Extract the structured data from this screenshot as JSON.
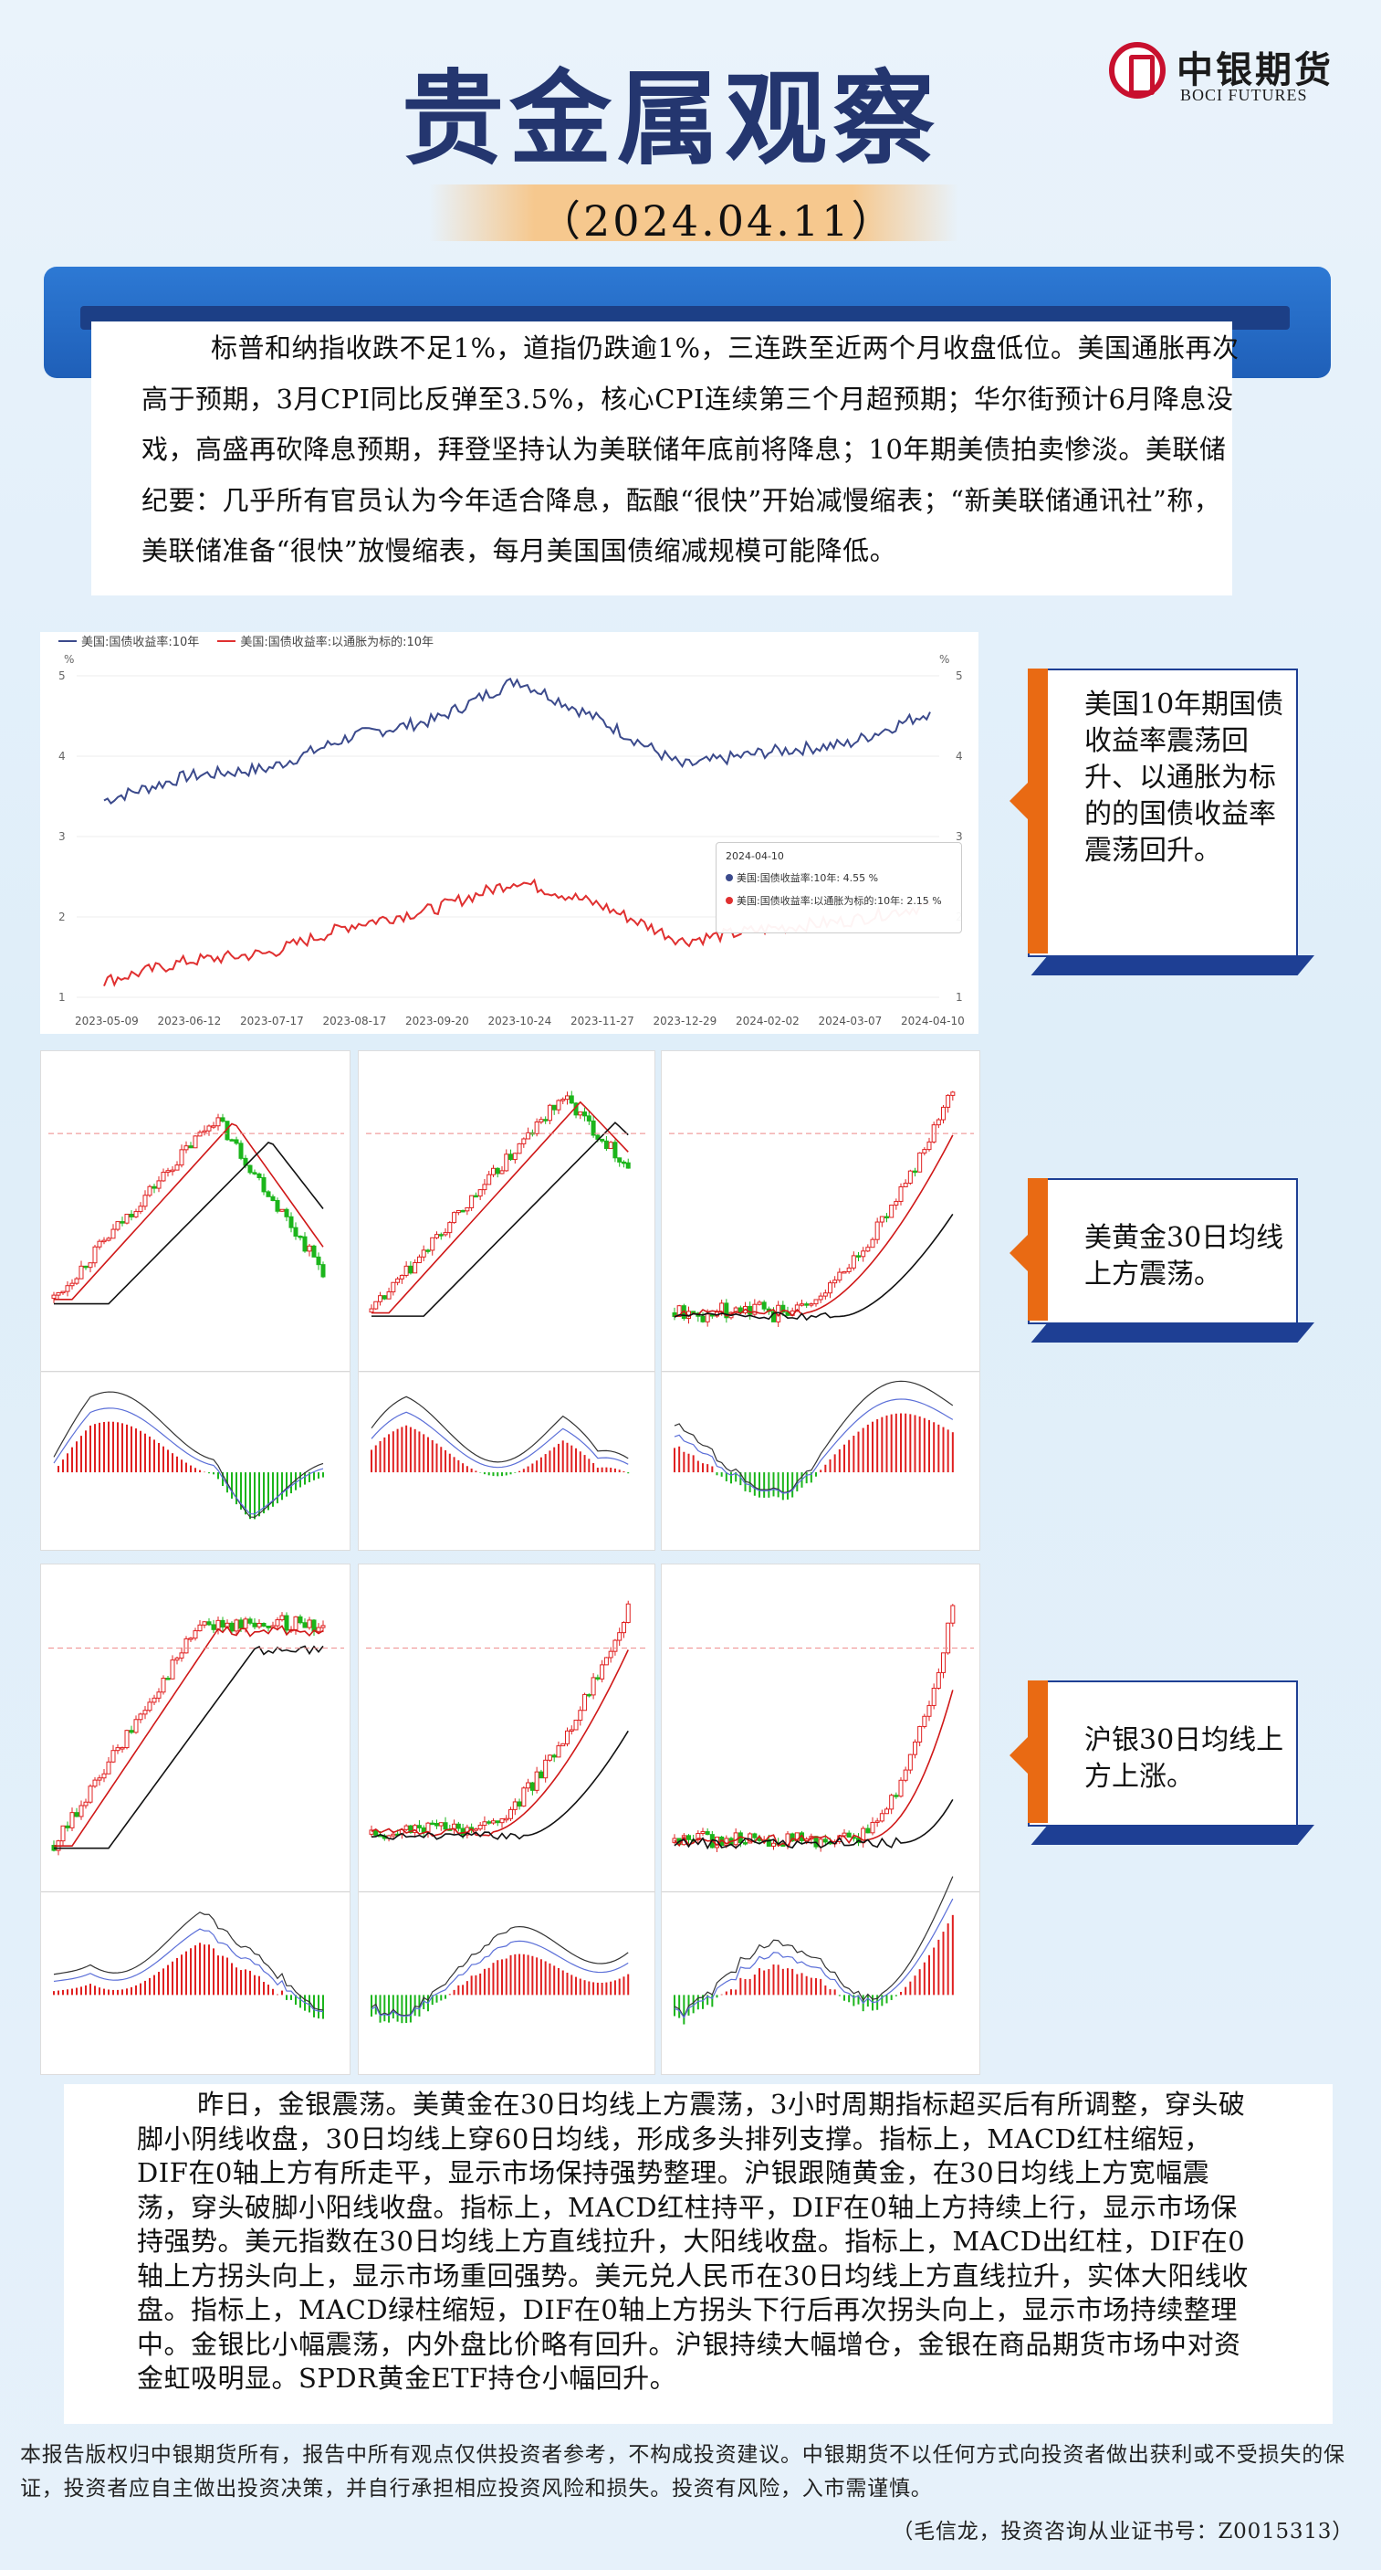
{
  "header": {
    "title": "贵金属观察",
    "date": "（2024.04.11）",
    "logo_cn": "中银期货",
    "logo_en": "BOCI FUTURES"
  },
  "intro": "标普和纳指收跌不足1%，道指仍跌逾1%，三连跌至近两个月收盘低位。美国通胀再次高于预期，3月CPI同比反弹至3.5%，核心CPI连续第三个月超预期；华尔街预计6月降息没戏，高盛再砍降息预期，拜登坚持认为美联储年底前将降息；10年期美债拍卖惨淡。美联储纪要：几乎所有官员认为今年适合降息，酝酿“很快”开始减慢缩表；“新美联储通讯社”称，美联储准备“很快”放慢缩表，每月美国国债缩减规模可能降低。",
  "yield_chart": {
    "legend": [
      "美国:国债收益率:10年",
      "美国:国债收益率:以通胀为标的:10年"
    ],
    "unit_left": "%",
    "unit_right": "%",
    "tooltip": {
      "date": "2024-04-10",
      "line1": "美国:国债收益率:10年:  4.55 %",
      "line2": "美国:国债收益率:以通胀为标的:10年:  2.15 %"
    },
    "colors": {
      "nominal": "#3b4a8c",
      "real": "#e03030"
    }
  },
  "chart_data": {
    "type": "line",
    "x": [
      "2023-05-09",
      "2023-06-12",
      "2023-07-17",
      "2023-08-17",
      "2023-09-20",
      "2023-10-24",
      "2023-11-27",
      "2023-12-29",
      "2024-02-02",
      "2024-03-07",
      "2024-04-10"
    ],
    "series": [
      {
        "name": "美国:国债收益率:10年",
        "values": [
          3.45,
          3.75,
          3.85,
          4.25,
          4.45,
          4.95,
          4.45,
          3.88,
          4.05,
          4.15,
          4.55
        ]
      },
      {
        "name": "美国:国债收益率:以通胀为标的:10年",
        "values": [
          1.2,
          1.45,
          1.55,
          1.9,
          2.1,
          2.45,
          2.15,
          1.7,
          1.85,
          1.95,
          2.15
        ]
      }
    ],
    "ylim": [
      1,
      5
    ],
    "yticks": [
      "1",
      "2",
      "3",
      "4",
      "5"
    ],
    "xlabel": "",
    "ylabel": "%",
    "grid": true,
    "legend_position": "top-left"
  },
  "callouts": {
    "c1": "美国10年期国债收益率震荡回升、以通胀为标的的国债收益率震荡回升。",
    "c2": "美黄金30日均线上方震荡。",
    "c3": "沪银30日均线上方上涨。"
  },
  "summary": "昨日，金银震荡。美黄金在30日均线上方震荡，3小时周期指标超买后有所调整，穿头破脚小阴线收盘，30日均线上穿60日均线，形成多头排列支撑。指标上，MACD红柱缩短，DIF在0轴上方有所走平，显示市场保持强势整理。沪银跟随黄金，在30日均线上方宽幅震荡，穿头破脚小阳线收盘。指标上，MACD红柱持平，DIF在0轴上方持续上行，显示市场保持强势。美元指数在30日均线上方直线拉升，大阳线收盘。指标上，MACD出红柱，DIF在0轴上方拐头向上，显示市场重回强势。美元兑人民币在30日均线上方直线拉升，实体大阳线收盘。指标上，MACD绿柱缩短，DIF在0轴上方拐头下行后再次拐头向上，显示市场持续整理中。金银比小幅震荡，内外盘比价略有回升。沪银持续大幅增仓，金银在商品期货市场中对资金虹吸明显。SPDR黄金ETF持仓小幅回升。",
  "disclaimer": "本报告版权归中银期货所有，报告中所有观点仅供投资者参考，不构成投资建议。中银期货不以任何方式向投资者做出获利或不受损失的保证，投资者应自主做出投资决策，并自行承担相应投资风险和损失。投资有风险，入市需谨慎。",
  "author": "（毛信龙，投资咨询从业证书号：Z0015313）"
}
